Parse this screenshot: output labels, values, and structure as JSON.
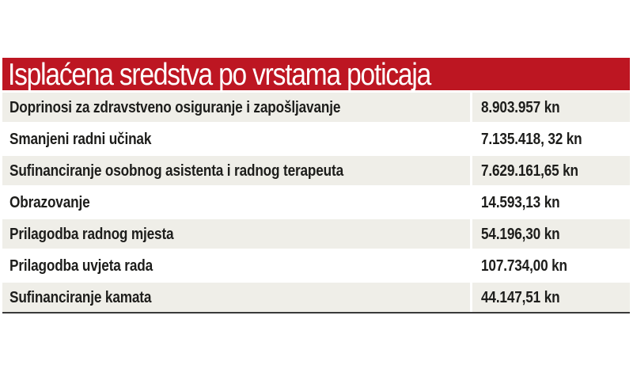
{
  "table": {
    "title": "Isplaćena sredstva po vrstama poticaja",
    "colors": {
      "title_bg": "#bd1622",
      "shaded_row": "#efeee8",
      "text": "#1d1d1b"
    },
    "rows": [
      {
        "label": "Doprinosi za zdravstveno osiguranje i zapošljavanje",
        "amount": "8.903.957 kn"
      },
      {
        "label": "Smanjeni radni učinak",
        "amount": "7.135.418, 32 kn"
      },
      {
        "label": "Sufinanciranje osobnog asistenta i radnog terapeuta",
        "amount": "7.629.161,65 kn"
      },
      {
        "label": "Obrazovanje",
        "amount": "14.593,13 kn"
      },
      {
        "label": "Prilagodba radnog mjesta",
        "amount": "54.196,30 kn"
      },
      {
        "label": "Prilagodba uvjeta rada",
        "amount": "107.734,00 kn"
      },
      {
        "label": "Sufinanciranje kamata",
        "amount": "44.147,51 kn"
      }
    ]
  }
}
